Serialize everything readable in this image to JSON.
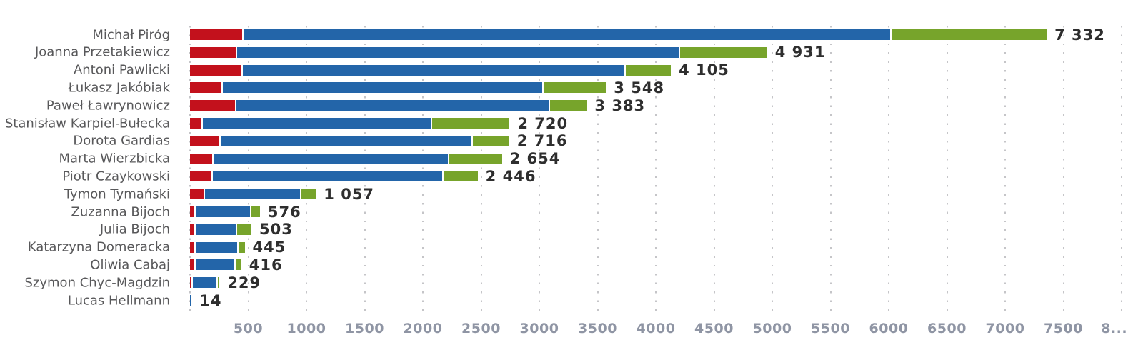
{
  "chart_data": {
    "type": "bar",
    "variant": "horizontal-stacked",
    "title": "",
    "xlabel": "",
    "ylabel": "",
    "legend_position": "none",
    "grid": "dotted-vertical",
    "xlim": [
      0,
      8200
    ],
    "x_tick_step": 500,
    "x_tick_labels": [
      "500",
      "1000",
      "1500",
      "2000",
      "2500",
      "3000",
      "3500",
      "4000",
      "4500",
      "5000",
      "5500",
      "6000",
      "6500",
      "7000",
      "7500",
      "8..."
    ],
    "series_keys": [
      "red",
      "blue",
      "green"
    ],
    "series_colors": {
      "red": "#c3111c",
      "blue": "#2365a9",
      "green": "#77a42b"
    },
    "rows": [
      {
        "name": "Michał Piróg",
        "value_label": "7 332",
        "total": 7332,
        "segments": {
          "red": 445,
          "blue": 5555,
          "green": 1332
        }
      },
      {
        "name": "Joanna Przetakiewicz",
        "value_label": "4 931",
        "total": 4931,
        "segments": {
          "red": 390,
          "blue": 3795,
          "green": 746
        }
      },
      {
        "name": "Antoni Pawlicki",
        "value_label": "4 105",
        "total": 4105,
        "segments": {
          "red": 440,
          "blue": 3280,
          "green": 385
        }
      },
      {
        "name": "Łukasz Jakóbiak",
        "value_label": "3 548",
        "total": 3548,
        "segments": {
          "red": 270,
          "blue": 2742,
          "green": 536
        }
      },
      {
        "name": "Paweł Ławrynowicz",
        "value_label": "3 383",
        "total": 3383,
        "segments": {
          "red": 385,
          "blue": 2682,
          "green": 316
        }
      },
      {
        "name": "Stanisław Karpiel-Bułecka",
        "value_label": "2 720",
        "total": 2720,
        "segments": {
          "red": 100,
          "blue": 1955,
          "green": 665
        }
      },
      {
        "name": "Dorota Gardias",
        "value_label": "2 716",
        "total": 2716,
        "segments": {
          "red": 250,
          "blue": 2155,
          "green": 311
        }
      },
      {
        "name": "Marta Wierzbicka",
        "value_label": "2 654",
        "total": 2654,
        "segments": {
          "red": 190,
          "blue": 2010,
          "green": 454
        }
      },
      {
        "name": "Piotr Czaykowski",
        "value_label": "2 446",
        "total": 2446,
        "segments": {
          "red": 185,
          "blue": 1970,
          "green": 291
        }
      },
      {
        "name": "Tymon Tymański",
        "value_label": "1 057",
        "total": 1057,
        "segments": {
          "red": 115,
          "blue": 820,
          "green": 122
        }
      },
      {
        "name": "Zuzanna Bijoch",
        "value_label": "576",
        "total": 576,
        "segments": {
          "red": 36,
          "blue": 468,
          "green": 72
        }
      },
      {
        "name": "Julia Bijoch",
        "value_label": "503",
        "total": 503,
        "segments": {
          "red": 36,
          "blue": 344,
          "green": 123
        }
      },
      {
        "name": "Katarzyna Domeracka",
        "value_label": "445",
        "total": 445,
        "segments": {
          "red": 36,
          "blue": 354,
          "green": 55
        }
      },
      {
        "name": "Oliwia Cabaj",
        "value_label": "416",
        "total": 416,
        "segments": {
          "red": 36,
          "blue": 332,
          "green": 48
        }
      },
      {
        "name": "Szymon Chyc-Magdzin",
        "value_label": "229",
        "total": 229,
        "segments": {
          "red": 15,
          "blue": 197,
          "green": 17
        }
      },
      {
        "name": "Lucas Hellmann",
        "value_label": "14",
        "total": 14,
        "segments": {
          "red": 0,
          "blue": 14,
          "green": 0
        }
      }
    ]
  },
  "colors": {
    "background": "#ffffff",
    "category_label": "#58585a",
    "value_label": "#2e2e2e",
    "axis_label": "#8f95a4",
    "gridline": "#c5c5c8"
  }
}
